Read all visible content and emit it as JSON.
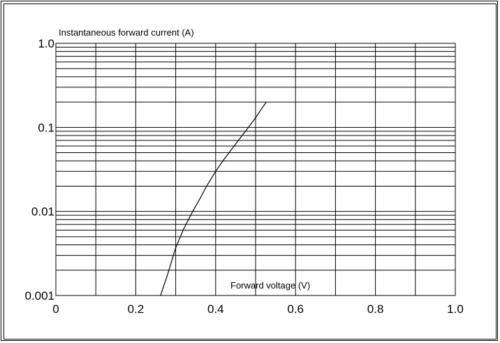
{
  "chart_data": {
    "type": "line",
    "ylabel": "Instantaneous forward current (A)",
    "xlabel": "Forward voltage (V)",
    "x_scale": "linear",
    "y_scale": "log",
    "xlim": [
      0,
      1.0
    ],
    "ylim": [
      0.001,
      1.0
    ],
    "x_ticks": [
      0,
      0.2,
      0.4,
      0.6,
      0.8,
      1.0
    ],
    "x_tick_labels": [
      "0",
      "0.2",
      "0.4",
      "0.6",
      "0.8",
      "1.0"
    ],
    "y_ticks": [
      0.001,
      0.01,
      0.1,
      1.0
    ],
    "y_tick_labels": [
      "0.001",
      "0.01",
      "0.1",
      "1.0"
    ],
    "grid": true,
    "x": [
      0.262,
      0.28,
      0.3,
      0.32,
      0.34,
      0.36,
      0.38,
      0.4,
      0.42,
      0.44,
      0.46,
      0.48,
      0.5,
      0.52,
      0.527
    ],
    "y": [
      0.001,
      0.0018,
      0.0037,
      0.0062,
      0.0095,
      0.014,
      0.021,
      0.03,
      0.041,
      0.055,
      0.073,
      0.097,
      0.13,
      0.18,
      0.2
    ]
  }
}
